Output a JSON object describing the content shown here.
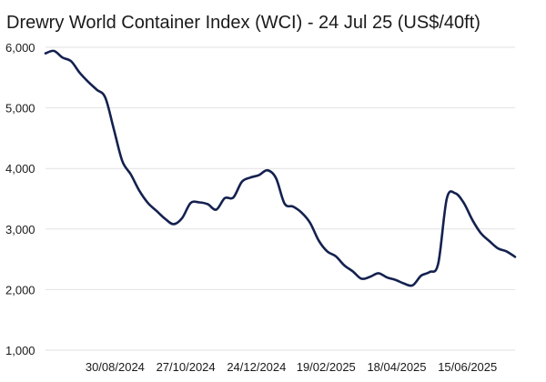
{
  "chart_data": {
    "type": "line",
    "title": "Drewry World Container Index (WCI) - 24 Jul 25 (US$/40ft)",
    "xlabel": "",
    "ylabel": "",
    "ylim": [
      1000,
      6000
    ],
    "yticks": [
      1000,
      2000,
      3000,
      4000,
      5000,
      6000
    ],
    "ytick_labels": [
      "1,000",
      "2,000",
      "3,000",
      "4,000",
      "5,000",
      "6,000"
    ],
    "xlim": [
      "2024-07-04",
      "2025-07-24"
    ],
    "xticks": [
      "2024-08-30",
      "2024-10-27",
      "2024-12-24",
      "2025-02-19",
      "2025-04-18",
      "2025-06-15"
    ],
    "xtick_labels": [
      "30/08/2024",
      "27/10/2024",
      "24/12/2024",
      "19/02/2025",
      "18/04/2025",
      "15/06/2025"
    ],
    "grid": "horizontal",
    "legend": "none",
    "colors": {
      "series": "#14214f",
      "grid": "#e2e2e2"
    },
    "series": [
      {
        "x": [
          "2024-07-04",
          "2024-07-11",
          "2024-07-18",
          "2024-07-25",
          "2024-08-01",
          "2024-08-08",
          "2024-08-15",
          "2024-08-22",
          "2024-08-29",
          "2024-09-05",
          "2024-09-12",
          "2024-09-19",
          "2024-09-26",
          "2024-10-03",
          "2024-10-10",
          "2024-10-17",
          "2024-10-24",
          "2024-10-31",
          "2024-11-07",
          "2024-11-14",
          "2024-11-21",
          "2024-11-28",
          "2024-12-05",
          "2024-12-12",
          "2024-12-19",
          "2024-12-26",
          "2025-01-02",
          "2025-01-09",
          "2025-01-16",
          "2025-01-23",
          "2025-01-30",
          "2025-02-06",
          "2025-02-13",
          "2025-02-20",
          "2025-02-27",
          "2025-03-06",
          "2025-03-13",
          "2025-03-20",
          "2025-03-27",
          "2025-04-03",
          "2025-04-10",
          "2025-04-17",
          "2025-04-24",
          "2025-05-01",
          "2025-05-08",
          "2025-05-15",
          "2025-05-22",
          "2025-05-29",
          "2025-06-05",
          "2025-06-12",
          "2025-06-19",
          "2025-06-26",
          "2025-07-03",
          "2025-07-10",
          "2025-07-17",
          "2025-07-24"
        ],
        "values": [
          5900,
          5940,
          5830,
          5770,
          5580,
          5430,
          5300,
          5170,
          4650,
          4120,
          3900,
          3630,
          3430,
          3300,
          3170,
          3080,
          3180,
          3430,
          3440,
          3410,
          3320,
          3510,
          3520,
          3780,
          3850,
          3890,
          3970,
          3840,
          3420,
          3370,
          3270,
          3100,
          2810,
          2630,
          2550,
          2400,
          2300,
          2180,
          2210,
          2270,
          2200,
          2160,
          2100,
          2070,
          2230,
          2290,
          2430,
          3500,
          3590,
          3430,
          3150,
          2930,
          2800,
          2680,
          2630,
          2540
        ]
      }
    ]
  }
}
